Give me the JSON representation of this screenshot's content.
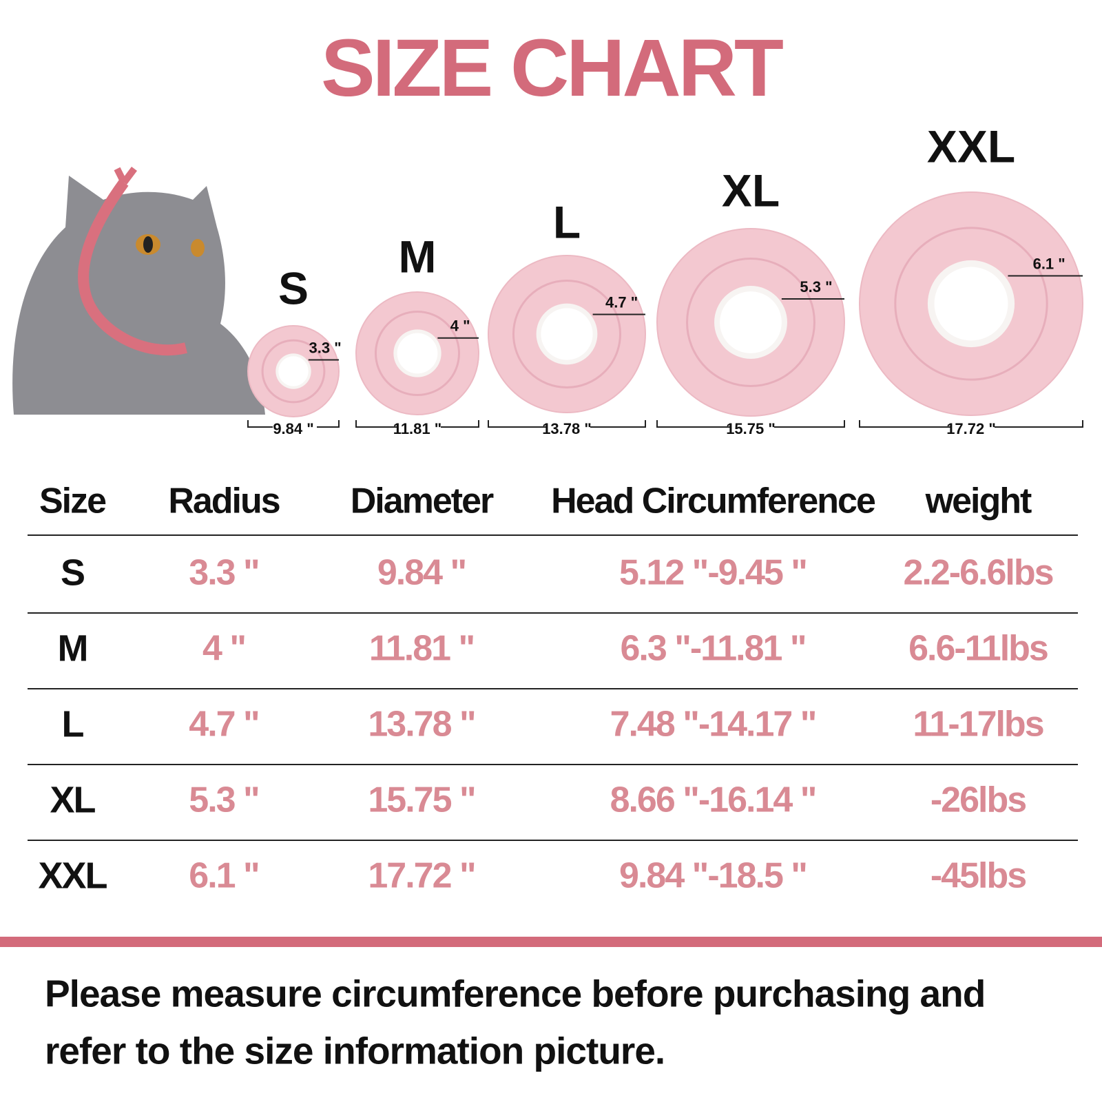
{
  "title": "SIZE CHART",
  "diagram": {
    "items": [
      {
        "size": "S",
        "radius": "3.3 \"",
        "diameter": "9.84 \""
      },
      {
        "size": "M",
        "radius": "4 \"",
        "diameter": "11.81 \""
      },
      {
        "size": "L",
        "radius": "4.7 \"",
        "diameter": "13.78 \""
      },
      {
        "size": "XL",
        "radius": "5.3 \"",
        "diameter": "15.75 \""
      },
      {
        "size": "XXL",
        "radius": "6.1 \"",
        "diameter": "17.72 \""
      }
    ]
  },
  "table": {
    "header": [
      "Size",
      "Radius",
      "Diameter",
      "Head Circumference",
      "weight"
    ],
    "rows": [
      [
        "S",
        "3.3 \"",
        "9.84 \"",
        "5.12 \"-9.45 \"",
        "2.2-6.6lbs"
      ],
      [
        "M",
        "4 \"",
        "11.81 \"",
        "6.3 \"-11.81 \"",
        "6.6-11lbs"
      ],
      [
        "L",
        "4.7 \"",
        "13.78 \"",
        "7.48 \"-14.17 \"",
        "11-17lbs"
      ],
      [
        "XL",
        "5.3 \"",
        "15.75 \"",
        "8.66 \"-16.14 \"",
        "-26lbs"
      ],
      [
        "XXL",
        "6.1 \"",
        "17.72 \"",
        "9.84 \"-18.5 \"",
        "-45lbs"
      ]
    ]
  },
  "note": [
    "Please measure circumference before purchasing and",
    "refer to the size information picture."
  ]
}
